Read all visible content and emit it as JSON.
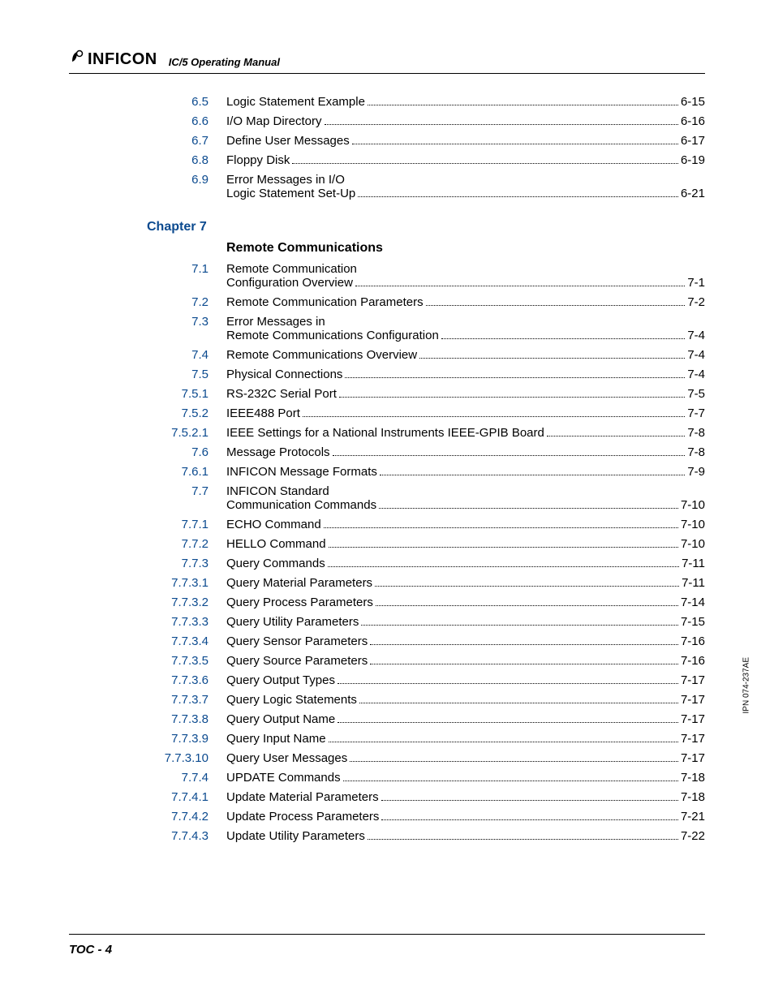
{
  "header": {
    "logo_text": "INFICON",
    "subtitle": "IC/5 Operating Manual"
  },
  "side_label": "IPN 074-237AE",
  "footer": "TOC - 4",
  "toc_pre": [
    {
      "num": "6.5",
      "title": "Logic Statement Example",
      "page": "6-15"
    },
    {
      "num": "6.6",
      "title": "I/O Map Directory",
      "page": "6-16"
    },
    {
      "num": "6.7",
      "title": "Define User Messages",
      "page": "6-17"
    },
    {
      "num": "6.8",
      "title": "Floppy Disk",
      "page": "6-19"
    }
  ],
  "toc_multi1": {
    "num": "6.9",
    "line1": "Error Messages in I/O",
    "line2": "Logic Statement Set-Up",
    "page": "6-21"
  },
  "chapter": {
    "label": "Chapter 7",
    "title": "Remote Communications"
  },
  "toc_multi2": {
    "num": "7.1",
    "line1": "Remote Communication",
    "line2": "Configuration Overview",
    "page": "7-1"
  },
  "toc_mid1": [
    {
      "num": "7.2",
      "title": "Remote Communication Parameters",
      "page": "7-2"
    }
  ],
  "toc_multi3": {
    "num": "7.3",
    "line1": "Error Messages in",
    "line2": "Remote Communications Configuration",
    "page": "7-4"
  },
  "toc_mid2": [
    {
      "num": "7.4",
      "title": "Remote Communications Overview",
      "page": "7-4"
    },
    {
      "num": "7.5",
      "title": "Physical Connections",
      "page": "7-4"
    },
    {
      "num": "7.5.1",
      "title": "RS-232C Serial Port",
      "page": "7-5"
    },
    {
      "num": "7.5.2",
      "title": "IEEE488 Port",
      "page": "7-7"
    },
    {
      "num": "7.5.2.1",
      "title": "IEEE Settings for a National Instruments IEEE-GPIB Board",
      "page": "7-8"
    },
    {
      "num": "7.6",
      "title": "Message Protocols",
      "page": "7-8"
    },
    {
      "num": "7.6.1",
      "title": "INFICON Message Formats",
      "page": "7-9"
    }
  ],
  "toc_multi4": {
    "num": "7.7",
    "line1": "INFICON Standard",
    "line2": "Communication Commands",
    "page": "7-10"
  },
  "toc_post": [
    {
      "num": "7.7.1",
      "title": "ECHO Command",
      "page": "7-10"
    },
    {
      "num": "7.7.2",
      "title": "HELLO Command",
      "page": "7-10"
    },
    {
      "num": "7.7.3",
      "title": "Query Commands",
      "page": "7-11"
    },
    {
      "num": "7.7.3.1",
      "title": "Query Material Parameters",
      "page": "7-11"
    },
    {
      "num": "7.7.3.2",
      "title": "Query Process Parameters",
      "page": "7-14"
    },
    {
      "num": "7.7.3.3",
      "title": "Query Utility Parameters",
      "page": "7-15"
    },
    {
      "num": "7.7.3.4",
      "title": "Query Sensor Parameters",
      "page": "7-16"
    },
    {
      "num": "7.7.3.5",
      "title": "Query Source Parameters",
      "page": "7-16"
    },
    {
      "num": "7.7.3.6",
      "title": "Query Output Types",
      "page": "7-17"
    },
    {
      "num": "7.7.3.7",
      "title": "Query Logic Statements",
      "page": "7-17"
    },
    {
      "num": "7.7.3.8",
      "title": "Query Output Name",
      "page": "7-17"
    },
    {
      "num": "7.7.3.9",
      "title": "Query Input Name",
      "page": "7-17"
    },
    {
      "num": "7.7.3.10",
      "title": "Query User Messages",
      "page": "7-17"
    },
    {
      "num": "7.7.4",
      "title": "UPDATE Commands",
      "page": "7-18"
    },
    {
      "num": "7.7.4.1",
      "title": "Update Material Parameters",
      "page": "7-18"
    },
    {
      "num": "7.7.4.2",
      "title": "Update Process Parameters",
      "page": "7-21"
    },
    {
      "num": "7.7.4.3",
      "title": "Update Utility Parameters",
      "page": "7-22"
    }
  ]
}
